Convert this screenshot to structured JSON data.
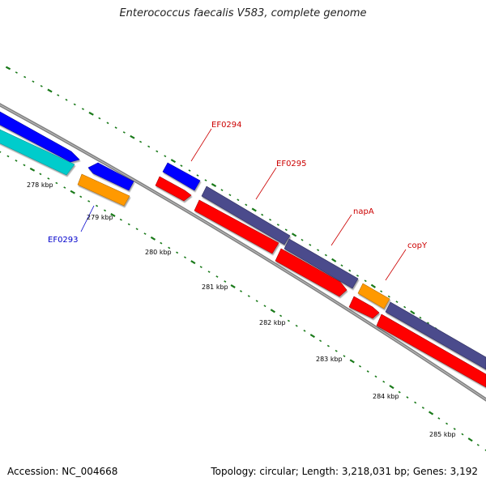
{
  "title": "Enterococcus faecalis V583, complete genome",
  "footer": {
    "accession": "Accession: NC_004668",
    "stats": "Topology: circular; Length: 3,218,031 bp; Genes: 3,192"
  },
  "ticks": [
    "278 kbp",
    "279 kbp",
    "280 kbp",
    "281 kbp",
    "282 kbp",
    "283 kbp",
    "284 kbp",
    "285 kbp"
  ],
  "genes": [
    {
      "label": "EF0293",
      "color": "#0000cc"
    },
    {
      "label": "EF0294",
      "color": "#cc0000"
    },
    {
      "label": "EF0295",
      "color": "#cc0000"
    },
    {
      "label": "napA",
      "color": "#cc0000"
    },
    {
      "label": "copY",
      "color": "#cc0000"
    }
  ],
  "colors": {
    "forward_cds": "#0000ff",
    "reverse_cds": "#ff0000",
    "orange_cds": "#ff9900",
    "cyan_cds": "#00cccc",
    "purple_cds": "#4b4c8c",
    "backbone": "#808080",
    "tick": "#1a7a1a"
  }
}
